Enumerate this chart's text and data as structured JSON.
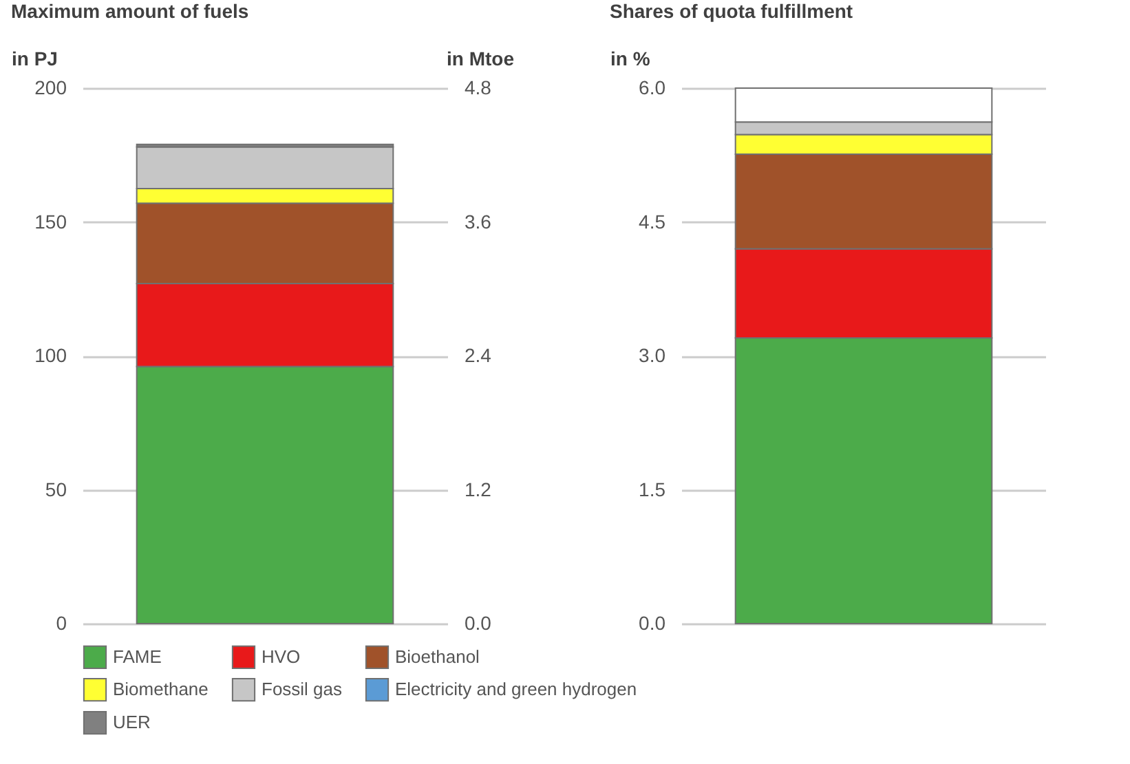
{
  "chart_data": [
    {
      "type": "bar",
      "stacked": true,
      "title": "Maximum amount of fuels",
      "ylabel": "in PJ",
      "y2label": "in Mtoe",
      "categories": [
        null
      ],
      "ylim": [
        0,
        200
      ],
      "yticks": [
        0,
        50,
        100,
        150,
        200
      ],
      "y2lim": [
        0,
        4.8
      ],
      "y2ticks": [
        {
          "value": 0,
          "label": "0.0"
        },
        1.2,
        2.4,
        3.6,
        4.8
      ],
      "grid": "y",
      "tick_labels": "y",
      "legend": "bottom",
      "series": [
        {
          "name": "FAME",
          "color": "#4cab4a",
          "values": [
            96
          ]
        },
        {
          "name": "HVO",
          "color": "#e8191a",
          "values": [
            31
          ]
        },
        {
          "name": "Bioethanol",
          "color": "#a0522a",
          "values": [
            30
          ]
        },
        {
          "name": "Biomethane",
          "color": "#ffff33",
          "values": [
            5.5
          ]
        },
        {
          "name": "Fossil gas",
          "color": "#c6c6c6",
          "values": [
            15.5
          ]
        },
        {
          "name": "Electricity and green hydrogen",
          "color": "#5b9bd5",
          "values": [
            null
          ]
        },
        {
          "name": "UER",
          "color": "#808080",
          "values": [
            1
          ]
        }
      ]
    },
    {
      "type": "bar",
      "stacked": true,
      "title": "Shares of quota fulfillment",
      "ylabel": "in %",
      "categories": [
        null
      ],
      "ylim": [
        0,
        6
      ],
      "yticks": [
        {
          "value": 0,
          "label": "0.0"
        },
        1.5,
        {
          "value": 3,
          "label": "3.0"
        },
        4.5,
        {
          "value": 6,
          "label": "6.0"
        }
      ],
      "grid": "y",
      "tick_labels": "y",
      "series": [
        {
          "color": "#4cab4a",
          "values": [
            3.2
          ]
        },
        {
          "color": "#e8191a",
          "values": [
            1.0
          ]
        },
        {
          "color": "#a0522a",
          "values": [
            1.06
          ]
        },
        {
          "color": "#ffff33",
          "values": [
            0.22
          ]
        },
        {
          "color": "#c6c6c6",
          "values": [
            0.14
          ]
        },
        {
          "color": "#ffffff",
          "values": [
            0.38
          ]
        }
      ]
    }
  ]
}
